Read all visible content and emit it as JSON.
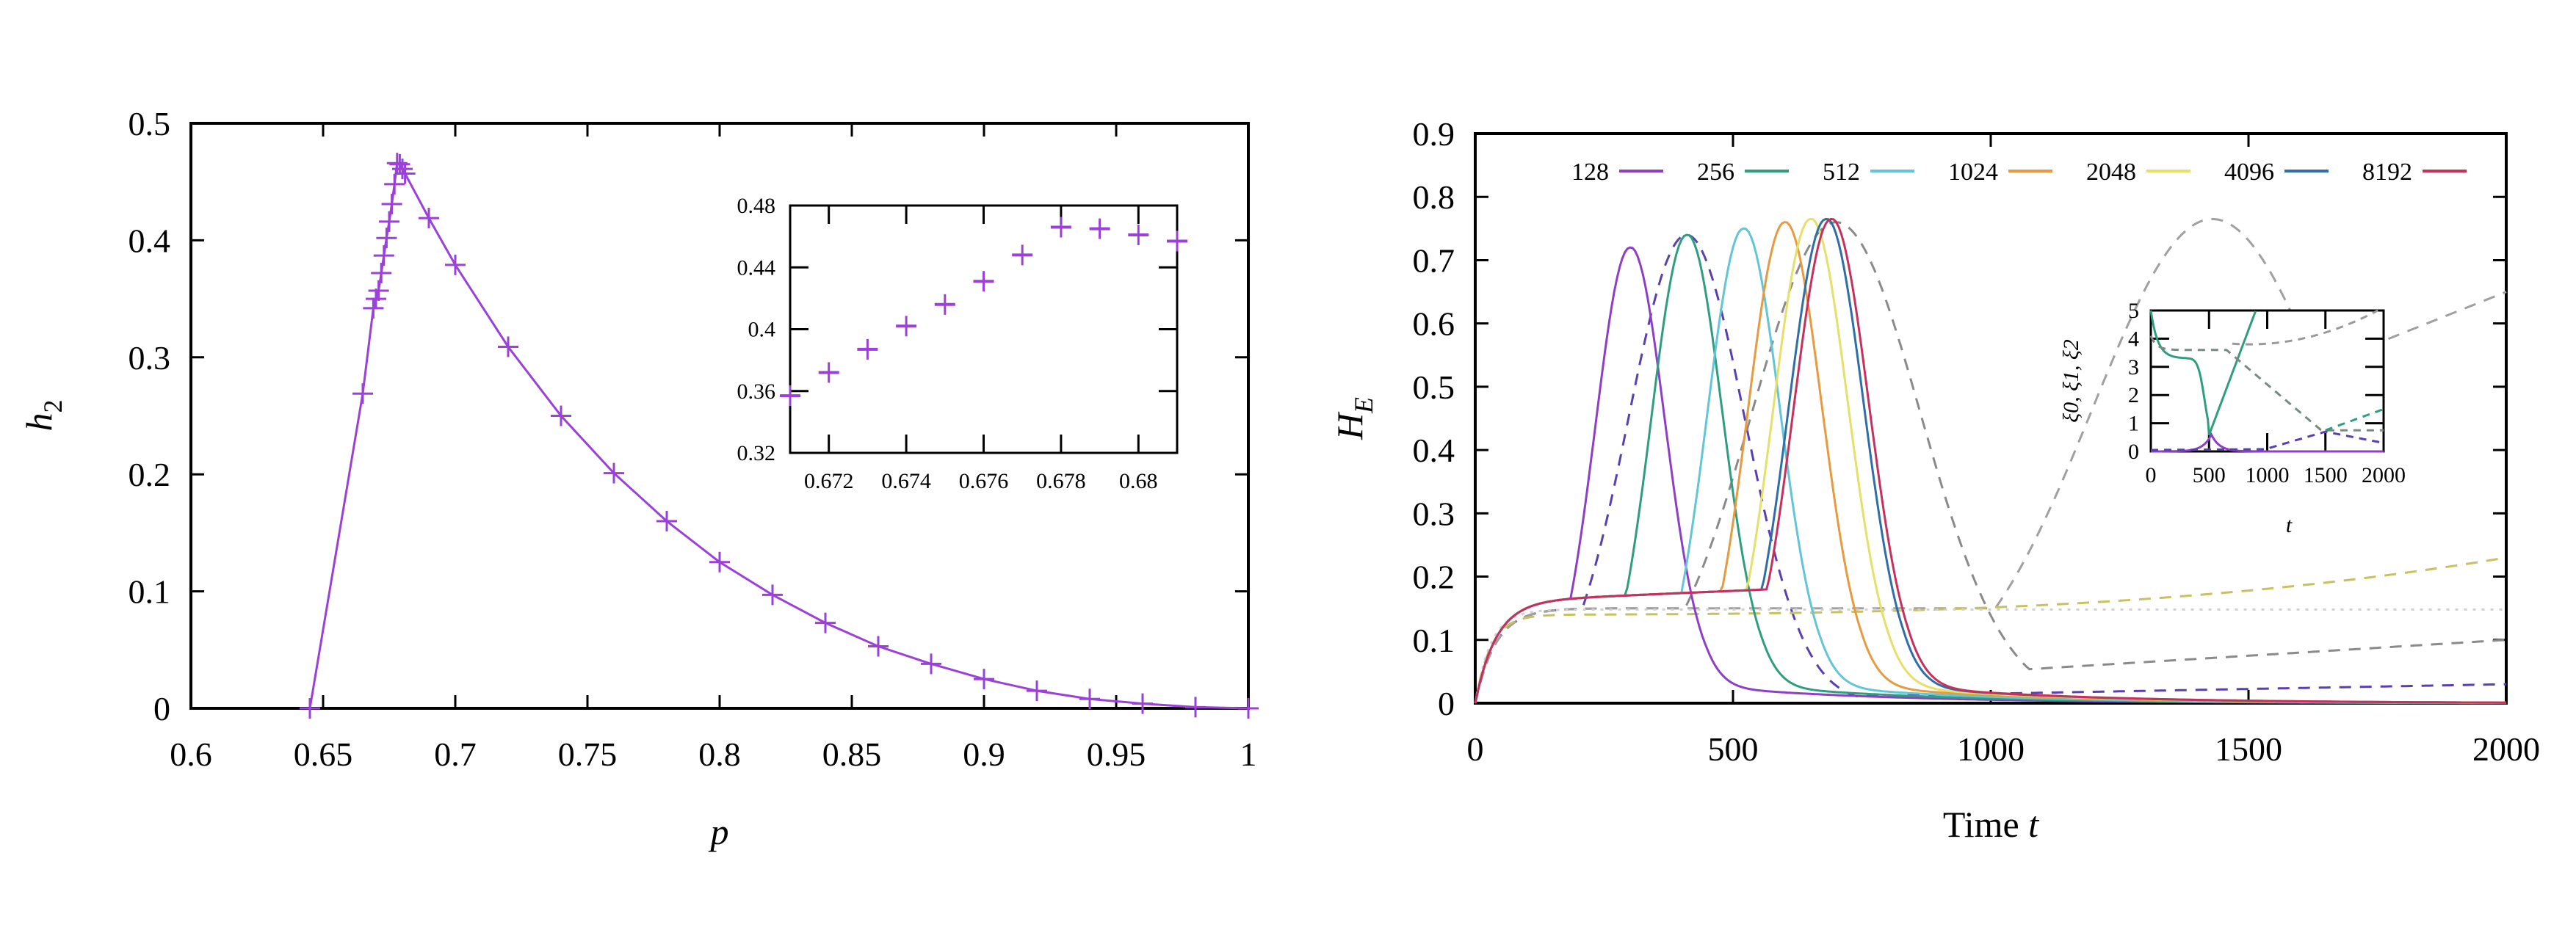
{
  "chart_data": [
    {
      "type": "scatter",
      "title": "",
      "xlabel": "p",
      "ylabel": "h",
      "ylabel_sub": "2",
      "xlim": [
        0.6,
        1.0
      ],
      "ylim": [
        0,
        0.5
      ],
      "xticks": [
        "0.6",
        "0.65",
        "0.7",
        "0.75",
        "0.8",
        "0.85",
        "0.9",
        "0.95",
        "1"
      ],
      "yticks": [
        "0",
        "0.1",
        "0.2",
        "0.3",
        "0.4",
        "0.5"
      ],
      "color": "#9b40d8",
      "marker": "plus-with-line",
      "x": [
        0.645,
        0.665,
        0.669,
        0.67,
        0.671,
        0.672,
        0.673,
        0.674,
        0.675,
        0.676,
        0.677,
        0.678,
        0.679,
        0.68,
        0.681,
        0.69,
        0.7,
        0.72,
        0.74,
        0.76,
        0.78,
        0.8,
        0.82,
        0.84,
        0.86,
        0.88,
        0.9,
        0.92,
        0.94,
        0.96,
        0.98,
        1.0
      ],
      "y": [
        0.0,
        0.269,
        0.342,
        0.35,
        0.357,
        0.372,
        0.387,
        0.402,
        0.416,
        0.431,
        0.448,
        0.466,
        0.465,
        0.461,
        0.457,
        0.419,
        0.379,
        0.309,
        0.25,
        0.201,
        0.16,
        0.125,
        0.097,
        0.073,
        0.053,
        0.038,
        0.025,
        0.015,
        0.008,
        0.004,
        0.001,
        0.0
      ],
      "inset": {
        "xlim": [
          0.671,
          0.681
        ],
        "ylim": [
          0.32,
          0.48
        ],
        "xticks": [
          "0.672",
          "0.674",
          "0.676",
          "0.678",
          "0.68"
        ],
        "yticks": [
          "0.32",
          "0.36",
          "0.4",
          "0.44",
          "0.48"
        ],
        "x": [
          0.671,
          0.672,
          0.673,
          0.674,
          0.675,
          0.676,
          0.677,
          0.678,
          0.679,
          0.68,
          0.681
        ],
        "y": [
          0.357,
          0.372,
          0.387,
          0.402,
          0.416,
          0.431,
          0.448,
          0.466,
          0.465,
          0.461,
          0.457
        ]
      }
    },
    {
      "type": "line",
      "title": "",
      "xlabel": "Time",
      "xlabel_var": "t",
      "ylabel": "H",
      "ylabel_sub": "E",
      "xlim": [
        0,
        2000
      ],
      "ylim": [
        0,
        0.9
      ],
      "xticks": [
        "0",
        "500",
        "1000",
        "1500",
        "2000"
      ],
      "yticks": [
        "0",
        "0.1",
        "0.2",
        "0.3",
        "0.4",
        "0.5",
        "0.6",
        "0.7",
        "0.8",
        "0.9"
      ],
      "legend_position": "top",
      "series": [
        {
          "name": "128",
          "color": "#8e3fc6",
          "peak_t": 300,
          "peak": 0.72
        },
        {
          "name": "256",
          "color": "#2e9e7e",
          "peak_t": 410,
          "peak": 0.74
        },
        {
          "name": "512",
          "color": "#62c6d6",
          "peak_t": 520,
          "peak": 0.75
        },
        {
          "name": "1024",
          "color": "#e79a3f",
          "peak_t": 600,
          "peak": 0.76
        },
        {
          "name": "2048",
          "color": "#e6e06a",
          "peak_t": 650,
          "peak": 0.765
        },
        {
          "name": "4096",
          "color": "#2f6ea6",
          "peak_t": 680,
          "peak": 0.765
        },
        {
          "name": "8192",
          "color": "#c8305c",
          "peak_t": 690,
          "peak": 0.765
        }
      ],
      "dashed_series": [
        {
          "name": "dashed-purple",
          "color": "#5a3fb0",
          "peak_t": 410,
          "peak": 0.74,
          "end": 0.03
        },
        {
          "name": "dashed-gray-1",
          "color": "#8a8a8a",
          "peak_t": 700,
          "peak": 0.76,
          "end": 0.1
        },
        {
          "name": "dashed-gray-2",
          "color": "#a0a0a0",
          "peak_t": 1430,
          "peak": 0.765,
          "end": 0.65
        },
        {
          "name": "dashed-yellow",
          "color": "#c9c060",
          "start": 0.14,
          "end": 0.23
        },
        {
          "name": "dotted-light",
          "color": "#d0d0d0",
          "level": 0.148
        }
      ],
      "inset": {
        "xlabel": "t",
        "ylabel": "ξ0, ξ1, ξ2",
        "xlim": [
          0,
          2000
        ],
        "ylim": [
          0,
          5
        ],
        "xticks": [
          "0",
          "500",
          "1000",
          "1500",
          "2000"
        ],
        "yticks": [
          "0",
          "1",
          "2",
          "3",
          "4",
          "5"
        ]
      }
    }
  ]
}
